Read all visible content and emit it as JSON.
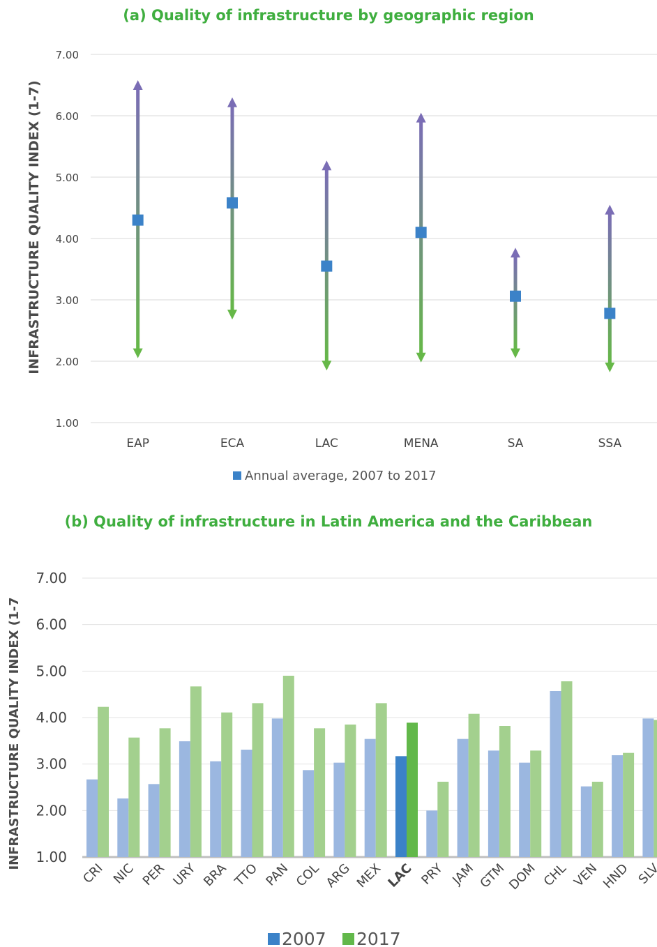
{
  "charts": {
    "a": {
      "title": "(a)  Quality of infrastructure by geographic region",
      "ylabel": "INFRASTRUCTURE QUALITY INDEX (1-7)",
      "legend": "Annual average, 2007 to 2017"
    },
    "b": {
      "title": "(b)  Quality of infrastructure in Latin America and the Caribbean",
      "ylabel": "INFRASTRUCTURE QUALITY INDEX (1-7",
      "legend_2007": "2007",
      "legend_2017": "2017"
    }
  },
  "colors": {
    "title": "#3fae3f",
    "arrow_top": "#7a6db5",
    "arrow_bottom": "#66b848",
    "marker": "#3b82c8",
    "bar_2007": "#9bb7e0",
    "bar_2017": "#a3d08e",
    "lac_2007": "#3b82c8",
    "lac_2017": "#62b84a"
  },
  "chart_data": [
    {
      "type": "scatter",
      "title": "(a)  Quality of infrastructure by geographic region",
      "ylabel": "INFRASTRUCTURE QUALITY INDEX (1-7)",
      "ylim": [
        1,
        7
      ],
      "yticks": [
        "1.00",
        "2.00",
        "3.00",
        "4.00",
        "5.00",
        "6.00",
        "7.00"
      ],
      "grid": true,
      "legend_position": "bottom",
      "categories": [
        "EAP",
        "ECA",
        "LAC",
        "MENA",
        "SA",
        "SSA"
      ],
      "series": [
        {
          "name": "Annual average, 2007 to 2017",
          "values": [
            4.3,
            4.58,
            3.55,
            4.1,
            3.06,
            2.78
          ]
        }
      ],
      "range_max": [
        6.58,
        6.3,
        5.27,
        6.05,
        3.85,
        4.55
      ],
      "range_min": [
        2.05,
        2.68,
        1.85,
        1.98,
        2.05,
        1.82
      ]
    },
    {
      "type": "bar",
      "title": "(b)  Quality of infrastructure in Latin America and the Caribbean",
      "ylabel": "INFRASTRUCTURE QUALITY INDEX (1-7",
      "ylim": [
        1,
        7
      ],
      "yticks": [
        "1.00",
        "2.00",
        "3.00",
        "4.00",
        "5.00",
        "6.00",
        "7.00"
      ],
      "grid": true,
      "legend_position": "bottom",
      "categories": [
        "CRI",
        "NIC",
        "PER",
        "URY",
        "BRA",
        "TTO",
        "PAN",
        "COL",
        "ARG",
        "MEX",
        "LAC",
        "PRY",
        "JAM",
        "GTM",
        "DOM",
        "CHL",
        "VEN",
        "HND",
        "SLV"
      ],
      "highlight": "LAC",
      "series": [
        {
          "name": "2007",
          "values": [
            2.67,
            2.26,
            2.57,
            3.49,
            3.06,
            3.31,
            3.98,
            2.87,
            3.03,
            3.54,
            3.17,
            2.0,
            3.54,
            3.29,
            3.03,
            4.57,
            2.52,
            3.19,
            3.98
          ]
        },
        {
          "name": "2017",
          "values": [
            4.23,
            3.57,
            3.77,
            4.67,
            4.11,
            4.31,
            4.9,
            3.77,
            3.85,
            4.31,
            3.89,
            2.62,
            4.08,
            3.82,
            3.29,
            4.78,
            2.62,
            3.24,
            3.95
          ]
        }
      ]
    }
  ]
}
